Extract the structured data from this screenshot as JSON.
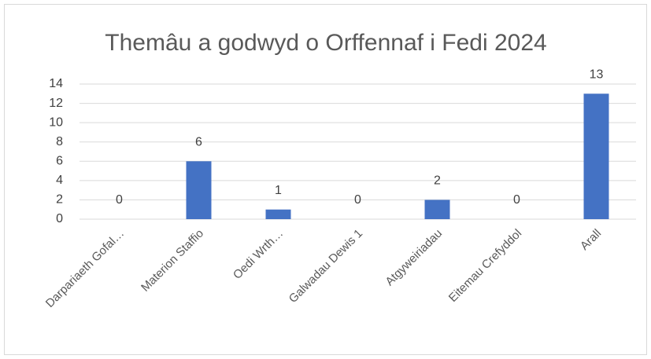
{
  "chart_data": {
    "type": "bar",
    "title": "Themâu a godwyd o Orffennaf i Fedi 2024",
    "categories": [
      "Darpariaeth Gofal…",
      "Materion Staffio",
      "Oedi Wrth…",
      "Galwadau Dewis 1",
      "Atgyweiriadau",
      "Eitemau Crefyddol",
      "Arall"
    ],
    "values": [
      0,
      6,
      1,
      0,
      2,
      0,
      13
    ],
    "color": "#4472c4",
    "ylim": [
      0,
      14
    ],
    "yticks": [
      0,
      2,
      4,
      6,
      8,
      10,
      12,
      14
    ],
    "grid": true
  }
}
